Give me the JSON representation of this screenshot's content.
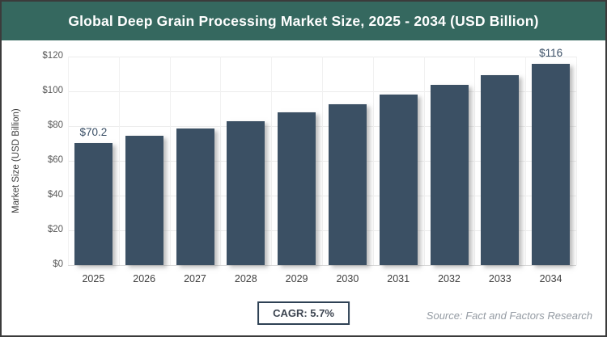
{
  "header": {
    "bg_color": "#35685f",
    "text_color": "#ffffff"
  },
  "chart_data": {
    "type": "bar",
    "title": "Global Deep Grain Processing Market Size, 2025 - 2034 (USD Billion)",
    "categories": [
      "2025",
      "2026",
      "2027",
      "2028",
      "2029",
      "2030",
      "2031",
      "2032",
      "2033",
      "2034"
    ],
    "values": [
      70.2,
      74.2,
      78.4,
      82.9,
      87.7,
      92.7,
      98.0,
      103.5,
      109.4,
      116.0
    ],
    "bar_value_labels": [
      "$70.2",
      "",
      "",
      "",
      "",
      "",
      "",
      "",
      "",
      "$116"
    ],
    "xlabel": "",
    "ylabel": "Market Size (USD Billion)",
    "ylim": [
      0,
      120
    ],
    "ytick_step": 20,
    "ytick_labels": [
      "$0",
      "$20",
      "$40",
      "$60",
      "$80",
      "$100",
      "$120"
    ],
    "grid": true,
    "legend": "none",
    "bar_color": "#3b5064"
  },
  "footer": {
    "cagr_label": "CAGR: 5.7%",
    "source": "Source: Fact and Factors Research"
  }
}
